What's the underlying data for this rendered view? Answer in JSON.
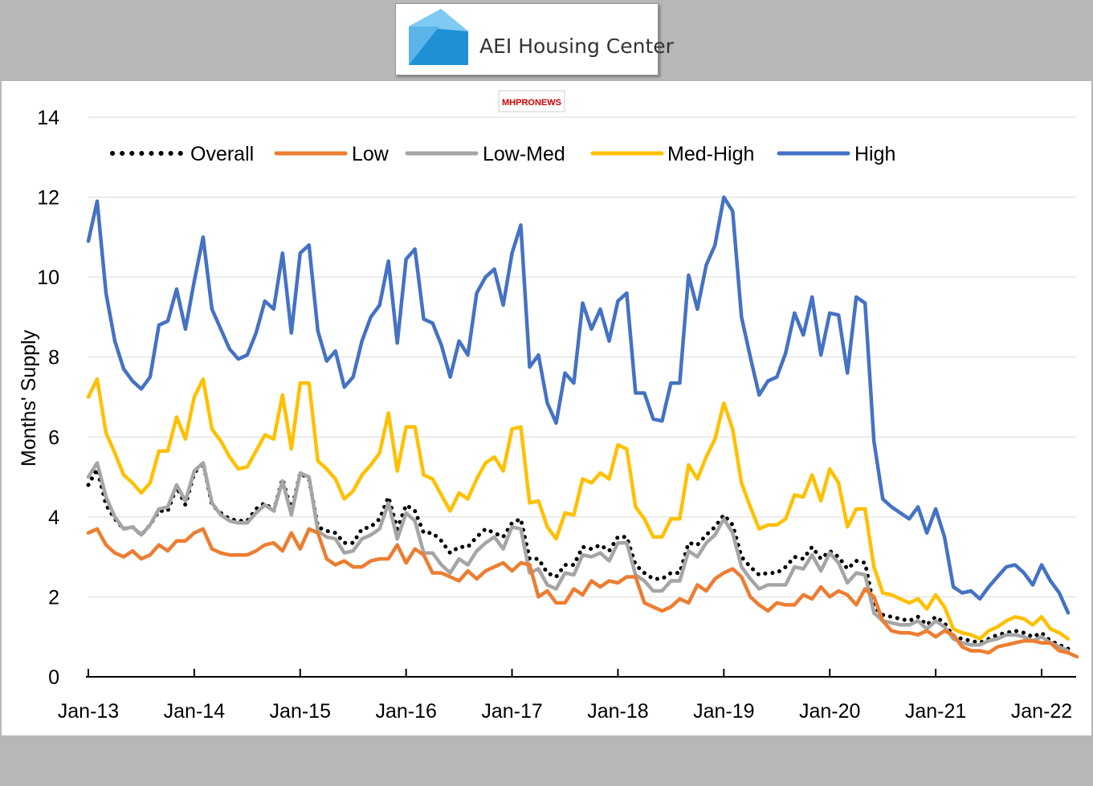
{
  "header": {
    "logo_text": "AEI Housing Center",
    "watermark_text": "MHPRONEWS"
  },
  "chart_data": {
    "type": "line",
    "title": "",
    "xlabel": "",
    "ylabel": "Months' Supply",
    "ylim": [
      0,
      14
    ],
    "yticks": [
      0,
      2,
      4,
      6,
      8,
      10,
      12,
      14
    ],
    "xticks": [
      "Jan-13",
      "Jan-14",
      "Jan-15",
      "Jan-16",
      "Jan-17",
      "Jan-18",
      "Jan-19",
      "Jan-20",
      "Jan-21",
      "Jan-22"
    ],
    "x_start": "Jan-13",
    "x_step": "month",
    "grid": "horizontal",
    "legend_position": "top",
    "series": [
      {
        "name": "High",
        "color": "#4472C4",
        "style": "solid",
        "values": [
          10.9,
          11.9,
          9.6,
          8.4,
          7.7,
          7.4,
          7.2,
          7.5,
          8.8,
          8.9,
          9.7,
          8.7,
          9.9,
          11.0,
          9.2,
          8.7,
          8.2,
          7.95,
          8.05,
          8.6,
          9.4,
          9.2,
          10.6,
          8.6,
          10.6,
          10.8,
          8.65,
          7.9,
          8.15,
          7.25,
          7.5,
          8.4,
          9.0,
          9.3,
          10.4,
          8.35,
          10.45,
          10.7,
          8.95,
          8.85,
          8.3,
          7.5,
          8.4,
          8.05,
          9.6,
          10.0,
          10.2,
          9.3,
          10.6,
          11.3,
          7.75,
          8.05,
          6.85,
          6.35,
          7.6,
          7.35,
          9.35,
          8.7,
          9.2,
          8.4,
          9.4,
          9.6,
          7.1,
          7.1,
          6.45,
          6.4,
          7.35,
          7.35,
          10.05,
          9.2,
          10.3,
          10.8,
          12.0,
          11.65,
          9.0,
          8.0,
          7.05,
          7.4,
          7.5,
          8.1,
          9.1,
          8.55,
          9.5,
          8.05,
          9.1,
          9.05,
          7.6,
          9.5,
          9.35,
          5.9,
          4.45,
          4.25,
          4.1,
          3.95,
          4.25,
          3.6,
          4.2,
          3.5,
          2.25,
          2.1,
          2.15,
          1.95,
          2.25,
          2.5,
          2.75,
          2.8,
          2.6,
          2.3,
          2.8,
          2.4,
          2.1,
          1.6
        ]
      },
      {
        "name": "Med-High",
        "color": "#FFC000",
        "style": "solid",
        "values": [
          7.0,
          7.45,
          6.1,
          5.6,
          5.05,
          4.85,
          4.6,
          4.85,
          5.65,
          5.65,
          6.5,
          5.95,
          7.0,
          7.45,
          6.2,
          5.9,
          5.5,
          5.2,
          5.25,
          5.65,
          6.05,
          5.95,
          7.05,
          5.7,
          7.35,
          7.35,
          5.4,
          5.2,
          4.95,
          4.45,
          4.65,
          5.05,
          5.3,
          5.6,
          6.6,
          5.15,
          6.25,
          6.25,
          5.05,
          4.95,
          4.55,
          4.15,
          4.6,
          4.45,
          4.95,
          5.35,
          5.5,
          5.15,
          6.2,
          6.25,
          4.35,
          4.4,
          3.75,
          3.45,
          4.1,
          4.05,
          4.95,
          4.85,
          5.1,
          4.95,
          5.8,
          5.7,
          4.25,
          3.95,
          3.5,
          3.5,
          3.95,
          3.95,
          5.3,
          4.95,
          5.5,
          5.95,
          6.85,
          6.2,
          4.85,
          4.25,
          3.7,
          3.8,
          3.8,
          3.95,
          4.55,
          4.5,
          5.05,
          4.4,
          5.2,
          4.85,
          3.75,
          4.2,
          4.2,
          2.75,
          2.1,
          2.05,
          1.95,
          1.85,
          1.95,
          1.7,
          2.05,
          1.75,
          1.2,
          1.1,
          1.05,
          0.95,
          1.15,
          1.25,
          1.4,
          1.5,
          1.45,
          1.3,
          1.5,
          1.2,
          1.1,
          0.95
        ]
      },
      {
        "name": "Overall",
        "color": "#000000",
        "style": "dotted",
        "values": [
          4.8,
          5.2,
          4.3,
          3.95,
          3.7,
          3.75,
          3.55,
          3.8,
          4.15,
          4.15,
          4.75,
          4.3,
          5.1,
          5.35,
          4.3,
          4.1,
          3.95,
          3.9,
          3.9,
          4.2,
          4.35,
          4.15,
          4.95,
          4.15,
          5.1,
          4.95,
          3.75,
          3.65,
          3.6,
          3.35,
          3.35,
          3.7,
          3.75,
          3.95,
          4.5,
          3.7,
          4.3,
          4.15,
          3.6,
          3.6,
          3.4,
          3.1,
          3.25,
          3.25,
          3.5,
          3.7,
          3.6,
          3.5,
          3.85,
          3.95,
          2.95,
          2.95,
          2.6,
          2.5,
          2.8,
          2.8,
          3.25,
          3.2,
          3.3,
          3.15,
          3.5,
          3.5,
          2.8,
          2.6,
          2.45,
          2.45,
          2.6,
          2.6,
          3.35,
          3.3,
          3.55,
          3.75,
          4.05,
          3.8,
          3.0,
          2.75,
          2.55,
          2.6,
          2.6,
          2.75,
          3.0,
          2.95,
          3.25,
          2.95,
          3.15,
          3.0,
          2.7,
          2.9,
          2.85,
          1.75,
          1.55,
          1.5,
          1.45,
          1.4,
          1.5,
          1.3,
          1.5,
          1.35,
          1.0,
          0.95,
          0.9,
          0.85,
          0.95,
          1.05,
          1.1,
          1.15,
          1.1,
          1.0,
          1.1,
          0.9,
          0.8,
          0.7
        ]
      },
      {
        "name": "Low-Med",
        "color": "#A5A5A5",
        "style": "solid",
        "values": [
          5.0,
          5.35,
          4.5,
          4.0,
          3.7,
          3.75,
          3.55,
          3.8,
          4.2,
          4.25,
          4.8,
          4.4,
          5.15,
          5.35,
          4.35,
          4.05,
          3.9,
          3.85,
          3.85,
          4.1,
          4.3,
          4.15,
          4.9,
          4.05,
          5.1,
          5.0,
          3.65,
          3.5,
          3.45,
          3.1,
          3.15,
          3.45,
          3.55,
          3.7,
          4.35,
          3.45,
          4.1,
          3.9,
          3.1,
          3.1,
          2.8,
          2.6,
          2.95,
          2.8,
          3.15,
          3.35,
          3.5,
          3.2,
          3.75,
          3.7,
          2.6,
          2.7,
          2.3,
          2.2,
          2.6,
          2.55,
          3.05,
          3.0,
          3.1,
          2.9,
          3.35,
          3.35,
          2.55,
          2.4,
          2.15,
          2.15,
          2.4,
          2.4,
          3.15,
          3.0,
          3.35,
          3.55,
          3.95,
          3.6,
          2.75,
          2.45,
          2.2,
          2.3,
          2.3,
          2.3,
          2.75,
          2.7,
          3.05,
          2.65,
          3.1,
          2.85,
          2.35,
          2.6,
          2.55,
          1.6,
          1.4,
          1.35,
          1.3,
          1.3,
          1.4,
          1.2,
          1.4,
          1.25,
          0.95,
          0.85,
          0.8,
          0.8,
          0.9,
          0.95,
          1.05,
          1.05,
          1.0,
          0.9,
          1.0,
          0.85,
          0.75,
          0.65
        ]
      },
      {
        "name": "Low",
        "color": "#ED7D31",
        "style": "solid",
        "values": [
          3.6,
          3.7,
          3.3,
          3.1,
          3.0,
          3.15,
          2.95,
          3.05,
          3.3,
          3.15,
          3.4,
          3.4,
          3.6,
          3.7,
          3.2,
          3.1,
          3.05,
          3.05,
          3.05,
          3.15,
          3.3,
          3.35,
          3.15,
          3.6,
          3.2,
          3.7,
          3.6,
          2.95,
          2.8,
          2.9,
          2.75,
          2.75,
          2.9,
          2.95,
          2.95,
          3.3,
          2.85,
          3.2,
          3.05,
          2.6,
          2.6,
          2.5,
          2.4,
          2.65,
          2.45,
          2.65,
          2.75,
          2.85,
          2.65,
          2.85,
          2.8,
          2.0,
          2.15,
          1.85,
          1.85,
          2.2,
          2.05,
          2.4,
          2.25,
          2.4,
          2.35,
          2.5,
          2.5,
          1.85,
          1.75,
          1.65,
          1.75,
          1.95,
          1.85,
          2.3,
          2.15,
          2.45,
          2.6,
          2.7,
          2.5,
          2.0,
          1.8,
          1.65,
          1.85,
          1.8,
          1.8,
          2.05,
          1.95,
          2.25,
          2.0,
          2.15,
          2.05,
          1.8,
          2.2,
          2.0,
          1.4,
          1.15,
          1.1,
          1.1,
          1.05,
          1.15,
          1.0,
          1.15,
          1.05,
          0.75,
          0.65,
          0.65,
          0.6,
          0.75,
          0.8,
          0.85,
          0.9,
          0.9,
          0.85,
          0.85,
          0.65,
          0.6,
          0.5
        ]
      }
    ],
    "legend_order": [
      "Overall",
      "Low",
      "Low-Med",
      "Med-High",
      "High"
    ]
  }
}
